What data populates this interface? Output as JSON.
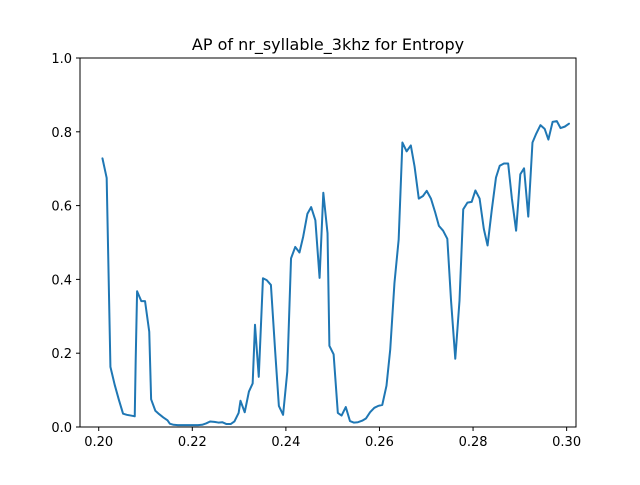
{
  "chart_data": {
    "type": "line",
    "title": "AP of nr_syllable_3khz for Entropy",
    "xlabel": "",
    "ylabel": "",
    "xlim": [
      0.196,
      0.302
    ],
    "ylim": [
      0.0,
      1.0
    ],
    "grid": false,
    "legend": "none",
    "xticks": [
      0.2,
      0.22,
      0.24,
      0.26,
      0.28,
      0.3
    ],
    "xtick_labels": [
      "0.20",
      "0.22",
      "0.24",
      "0.26",
      "0.28",
      "0.30"
    ],
    "yticks": [
      0.0,
      0.2,
      0.4,
      0.6,
      0.8,
      1.0
    ],
    "ytick_labels": [
      "0.0",
      "0.2",
      "0.4",
      "0.6",
      "0.8",
      "1.0"
    ],
    "series": [
      {
        "color": "#1f77b4",
        "points": [
          [
            0.2008,
            0.728
          ],
          [
            0.2017,
            0.675
          ],
          [
            0.2025,
            0.163
          ],
          [
            0.2034,
            0.115
          ],
          [
            0.2043,
            0.074
          ],
          [
            0.2052,
            0.036
          ],
          [
            0.206,
            0.033
          ],
          [
            0.2069,
            0.031
          ],
          [
            0.2077,
            0.029
          ],
          [
            0.2079,
            0.18
          ],
          [
            0.2082,
            0.368
          ],
          [
            0.2091,
            0.341
          ],
          [
            0.2099,
            0.341
          ],
          [
            0.2108,
            0.258
          ],
          [
            0.2112,
            0.075
          ],
          [
            0.2121,
            0.044
          ],
          [
            0.2129,
            0.035
          ],
          [
            0.2138,
            0.026
          ],
          [
            0.2147,
            0.018
          ],
          [
            0.2152,
            0.009
          ],
          [
            0.216,
            0.006
          ],
          [
            0.2169,
            0.005
          ],
          [
            0.2178,
            0.005
          ],
          [
            0.2186,
            0.005
          ],
          [
            0.2195,
            0.005
          ],
          [
            0.2204,
            0.005
          ],
          [
            0.2212,
            0.005
          ],
          [
            0.2221,
            0.006
          ],
          [
            0.223,
            0.01
          ],
          [
            0.2238,
            0.015
          ],
          [
            0.2247,
            0.014
          ],
          [
            0.2256,
            0.012
          ],
          [
            0.2264,
            0.013
          ],
          [
            0.2273,
            0.008
          ],
          [
            0.2282,
            0.008
          ],
          [
            0.229,
            0.015
          ],
          [
            0.2299,
            0.038
          ],
          [
            0.2303,
            0.071
          ],
          [
            0.2312,
            0.04
          ],
          [
            0.2321,
            0.096
          ],
          [
            0.2329,
            0.118
          ],
          [
            0.2334,
            0.277
          ],
          [
            0.2342,
            0.136
          ],
          [
            0.2351,
            0.403
          ],
          [
            0.2359,
            0.398
          ],
          [
            0.2368,
            0.385
          ],
          [
            0.2377,
            0.207
          ],
          [
            0.2385,
            0.057
          ],
          [
            0.2394,
            0.033
          ],
          [
            0.2403,
            0.15
          ],
          [
            0.2411,
            0.457
          ],
          [
            0.242,
            0.488
          ],
          [
            0.2429,
            0.473
          ],
          [
            0.2437,
            0.516
          ],
          [
            0.2446,
            0.578
          ],
          [
            0.2454,
            0.596
          ],
          [
            0.2463,
            0.56
          ],
          [
            0.2472,
            0.404
          ],
          [
            0.248,
            0.635
          ],
          [
            0.2489,
            0.525
          ],
          [
            0.2493,
            0.22
          ],
          [
            0.2502,
            0.197
          ],
          [
            0.2511,
            0.038
          ],
          [
            0.2519,
            0.031
          ],
          [
            0.2528,
            0.054
          ],
          [
            0.2537,
            0.016
          ],
          [
            0.2545,
            0.012
          ],
          [
            0.2554,
            0.013
          ],
          [
            0.2563,
            0.017
          ],
          [
            0.2571,
            0.023
          ],
          [
            0.258,
            0.04
          ],
          [
            0.2589,
            0.052
          ],
          [
            0.2597,
            0.057
          ],
          [
            0.2606,
            0.06
          ],
          [
            0.2615,
            0.112
          ],
          [
            0.2623,
            0.21
          ],
          [
            0.2632,
            0.39
          ],
          [
            0.2641,
            0.508
          ],
          [
            0.2649,
            0.771
          ],
          [
            0.2658,
            0.747
          ],
          [
            0.2667,
            0.763
          ],
          [
            0.2675,
            0.706
          ],
          [
            0.2684,
            0.619
          ],
          [
            0.2693,
            0.626
          ],
          [
            0.2701,
            0.64
          ],
          [
            0.271,
            0.619
          ],
          [
            0.2719,
            0.582
          ],
          [
            0.2727,
            0.545
          ],
          [
            0.2736,
            0.532
          ],
          [
            0.2745,
            0.51
          ],
          [
            0.2753,
            0.342
          ],
          [
            0.2762,
            0.185
          ],
          [
            0.2771,
            0.342
          ],
          [
            0.2779,
            0.59
          ],
          [
            0.2788,
            0.608
          ],
          [
            0.2797,
            0.61
          ],
          [
            0.2805,
            0.641
          ],
          [
            0.2814,
            0.619
          ],
          [
            0.2823,
            0.537
          ],
          [
            0.2831,
            0.492
          ],
          [
            0.284,
            0.588
          ],
          [
            0.2849,
            0.676
          ],
          [
            0.2857,
            0.708
          ],
          [
            0.2866,
            0.714
          ],
          [
            0.2875,
            0.714
          ],
          [
            0.2883,
            0.619
          ],
          [
            0.2892,
            0.532
          ],
          [
            0.2901,
            0.685
          ],
          [
            0.2909,
            0.701
          ],
          [
            0.2918,
            0.57
          ],
          [
            0.2927,
            0.771
          ],
          [
            0.2935,
            0.795
          ],
          [
            0.2944,
            0.818
          ],
          [
            0.2953,
            0.808
          ],
          [
            0.2961,
            0.779
          ],
          [
            0.297,
            0.827
          ],
          [
            0.2979,
            0.829
          ],
          [
            0.2987,
            0.81
          ],
          [
            0.2996,
            0.814
          ],
          [
            0.3005,
            0.822
          ]
        ]
      }
    ]
  }
}
